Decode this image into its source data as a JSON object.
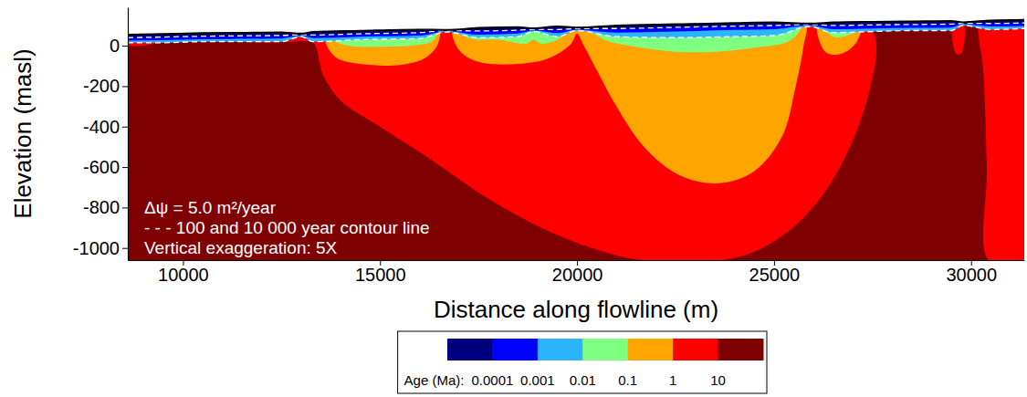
{
  "chart_data": {
    "type": "contour",
    "xlabel": "Distance along flowline (m)",
    "ylabel": "Elevation (masl)",
    "xlim": [
      8600,
      31350
    ],
    "ylim": [
      -1060,
      190
    ],
    "xticks": [
      10000,
      15000,
      20000,
      25000,
      30000
    ],
    "yticks": [
      0,
      -200,
      -400,
      -600,
      -800,
      -1000
    ],
    "annotations": [
      "Δψ = 5.0 m²/year",
      "- - - 100 and 10 000 year contour line",
      "Vertical exaggeration: 5X"
    ],
    "colorbar": {
      "label": "Age (Ma):",
      "colors": [
        "#00007f",
        "#0000ff",
        "#2db4ff",
        "#7fff7f",
        "#ffa500",
        "#ff0000",
        "#7f0000"
      ],
      "ticks": [
        0.0001,
        0.001,
        0.01,
        0.1,
        1,
        10
      ]
    },
    "surface": {
      "color": "#7f0000",
      "x": [
        8600,
        9500,
        10500,
        11500,
        12500,
        13000,
        13300,
        14500,
        16000,
        16700,
        17500,
        18500,
        18900,
        19500,
        20000,
        21000,
        22500,
        24000,
        25000,
        25900,
        26500,
        27500,
        28500,
        29500,
        29800,
        30500,
        31350
      ],
      "y": [
        55,
        58,
        62,
        64,
        66,
        60,
        68,
        74,
        80,
        78,
        88,
        92,
        86,
        95,
        90,
        100,
        106,
        112,
        115,
        110,
        115,
        118,
        120,
        122,
        116,
        125,
        128
      ]
    },
    "regions": [
      {
        "color": "#ff0000",
        "x": [
          8600,
          9500,
          10500,
          11500,
          12500,
          13000,
          13300,
          14500,
          16000,
          16700,
          17500,
          18500,
          18900,
          19500,
          20000,
          21000,
          22500,
          24000,
          25000,
          25900,
          26500,
          27200,
          27500,
          27600,
          27450,
          27100,
          26500,
          25700,
          24700,
          23700,
          21700,
          20700,
          19200,
          17700,
          16200,
          15000,
          14000,
          13550,
          13400,
          13300,
          12700,
          12000,
          11300,
          10600,
          10100,
          9500,
          8600
        ],
        "y": [
          55,
          58,
          62,
          64,
          66,
          60,
          68,
          74,
          80,
          78,
          88,
          92,
          86,
          95,
          90,
          100,
          106,
          112,
          115,
          110,
          115,
          117,
          70,
          -20,
          -200,
          -420,
          -660,
          -860,
          -1000,
          -1060,
          -1060,
          -1020,
          -910,
          -750,
          -550,
          -400,
          -270,
          -140,
          -20,
          15,
          20,
          15,
          25,
          40,
          30,
          15,
          5
        ]
      },
      {
        "color": "#ff0000",
        "x": [
          29550,
          29800,
          29750,
          29620
        ],
        "y": [
          123,
          116,
          -40,
          -40
        ]
      },
      {
        "color": "#ff0000",
        "x": [
          30200,
          30500,
          31350,
          31350,
          30450,
          30400,
          30300,
          30200
        ],
        "y": [
          124,
          125,
          128,
          -1060,
          -1060,
          -600,
          -100,
          40
        ]
      },
      {
        "color": "#ffa500",
        "x": [
          13600,
          14500,
          16000,
          16500,
          16450,
          16150,
          15500,
          14500,
          13900,
          13650
        ],
        "y": [
          69,
          74,
          80,
          80,
          0,
          -60,
          -95,
          -90,
          -60,
          0
        ]
      },
      {
        "color": "#ffa500",
        "x": [
          16850,
          17500,
          18500,
          18900,
          19500,
          20000,
          21000,
          22500,
          24000,
          25000,
          25800,
          25750,
          25550,
          25200,
          24500,
          23600,
          22600,
          21700,
          21000,
          20500,
          20150,
          20000,
          19850,
          19300,
          18500,
          17500,
          17000
        ],
        "y": [
          82,
          88,
          92,
          86,
          95,
          90,
          100,
          106,
          112,
          115,
          111,
          0,
          -200,
          -450,
          -620,
          -680,
          -640,
          -500,
          -300,
          -120,
          10,
          60,
          10,
          -60,
          -90,
          -80,
          -20
        ]
      },
      {
        "color": "#ffa500",
        "x": [
          26100,
          26500,
          27200,
          27100,
          26700,
          26300
        ],
        "y": [
          113,
          115,
          117,
          20,
          -40,
          -30
        ]
      },
      {
        "color": "#7fff7f",
        "x": [
          13700,
          14500,
          16000,
          16450,
          16350,
          16000,
          15000,
          14200,
          13800
        ],
        "y": [
          70,
          74,
          80,
          80,
          25,
          5,
          -5,
          0,
          30
        ]
      },
      {
        "color": "#7fff7f",
        "x": [
          16950,
          17500,
          18500,
          18900,
          19500,
          19800,
          19600,
          19100,
          18900,
          18700,
          18000,
          17300
        ],
        "y": [
          86,
          88,
          92,
          86,
          95,
          92,
          40,
          10,
          30,
          10,
          30,
          35
        ]
      },
      {
        "color": "#7fff7f",
        "x": [
          20250,
          21000,
          22500,
          24000,
          25000,
          25700,
          25450,
          24500,
          23500,
          22500,
          21500,
          20700
        ],
        "y": [
          95,
          100,
          106,
          112,
          115,
          112,
          30,
          -10,
          -30,
          -30,
          -5,
          30
        ]
      },
      {
        "color": "#7fff7f",
        "x": [
          26200,
          26500,
          27300,
          27000,
          26500
        ],
        "y": [
          114,
          115,
          117,
          60,
          45
        ]
      }
    ],
    "bands": [
      {
        "color": "#2db4ff",
        "line_style": "dashed",
        "y": [
          15,
          15,
          20,
          20,
          20,
          45,
          20,
          30,
          35,
          68,
          40,
          45,
          70,
          45,
          75,
          45,
          40,
          45,
          50,
          95,
          65,
          70,
          75,
          75,
          100,
          80,
          85
        ]
      },
      {
        "color": "#0000ff",
        "y": [
          25,
          28,
          32,
          34,
          36,
          50,
          38,
          45,
          50,
          72,
          55,
          60,
          76,
          62,
          80,
          65,
          70,
          78,
          82,
          100,
          82,
          85,
          88,
          90,
          106,
          95,
          98
        ]
      },
      {
        "color": "#00007f",
        "line_style": "dashed",
        "y": [
          40,
          43,
          47,
          49,
          51,
          55,
          53,
          59,
          65,
          75,
          73,
          77,
          81,
          80,
          85,
          85,
          91,
          97,
          100,
          105,
          100,
          103,
          105,
          107,
          111,
          110,
          113
        ]
      }
    ]
  }
}
